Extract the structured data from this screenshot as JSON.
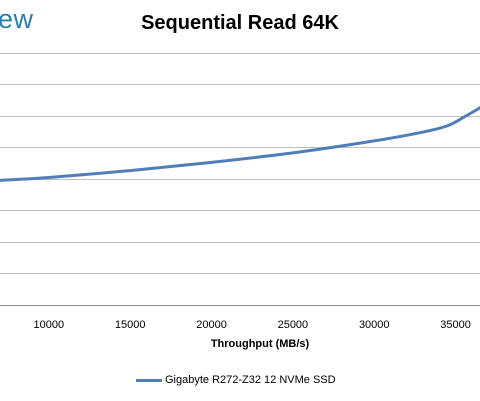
{
  "brand": {
    "text": "ew"
  },
  "chart_data": {
    "type": "line",
    "title": "Sequential Read 64K",
    "xlabel": "Throughput (MB/s)",
    "ylabel": "",
    "xlim": [
      7000,
      36500
    ],
    "ylim": [
      0,
      9
    ],
    "x_ticks": [
      10000,
      15000,
      20000,
      25000,
      30000,
      35000
    ],
    "grid": true,
    "legend_placement": "bottom",
    "series": [
      {
        "name": "Gigabyte R272-Z32 12 NVMe SSD",
        "color": "#4f7eb8",
        "x": [
          7000,
          10000,
          15000,
          20000,
          25000,
          30000,
          33000,
          34500,
          35500,
          36500
        ],
        "y": [
          3.95,
          4.04,
          4.26,
          4.52,
          4.82,
          5.2,
          5.48,
          5.68,
          5.95,
          6.25
        ]
      }
    ]
  }
}
